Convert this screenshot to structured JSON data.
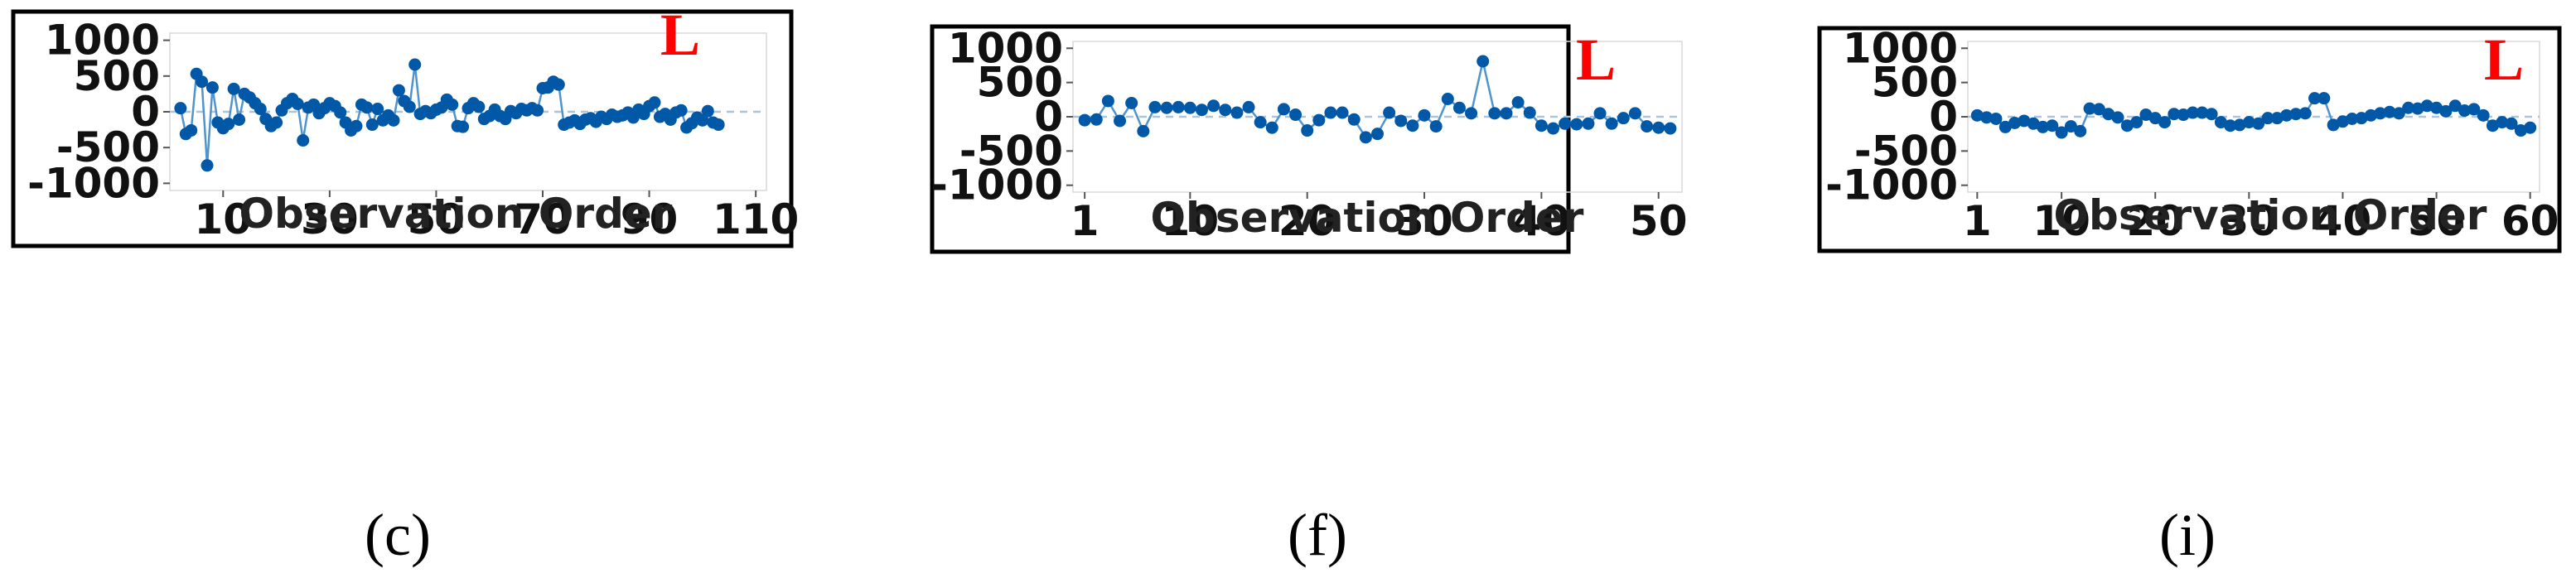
{
  "chart_data": [
    {
      "type": "line",
      "panel_label": "(c)",
      "badge": "L",
      "xlabel": "Observation Order",
      "ylabel": "",
      "xlim": [
        0,
        112
      ],
      "ylim": [
        -1100,
        1100
      ],
      "xticks": [
        10,
        30,
        50,
        70,
        90,
        110
      ],
      "yticks": [
        1000,
        500,
        0,
        -500,
        -1000
      ],
      "reference_line": 0,
      "grid": false,
      "series": [
        {
          "values": [
            [
              2,
              50
            ],
            [
              3,
              -310
            ],
            [
              4,
              -260
            ],
            [
              5,
              530
            ],
            [
              6,
              420
            ],
            [
              7,
              -750
            ],
            [
              8,
              340
            ],
            [
              9,
              -150
            ],
            [
              10,
              -230
            ],
            [
              11,
              -170
            ],
            [
              12,
              320
            ],
            [
              13,
              -110
            ],
            [
              14,
              250
            ],
            [
              15,
              200
            ],
            [
              16,
              120
            ],
            [
              17,
              40
            ],
            [
              18,
              -100
            ],
            [
              19,
              -200
            ],
            [
              20,
              -150
            ],
            [
              21,
              20
            ],
            [
              22,
              120
            ],
            [
              23,
              180
            ],
            [
              24,
              110
            ],
            [
              25,
              -400
            ],
            [
              26,
              60
            ],
            [
              27,
              100
            ],
            [
              28,
              -20
            ],
            [
              29,
              50
            ],
            [
              30,
              120
            ],
            [
              31,
              80
            ],
            [
              32,
              -10
            ],
            [
              33,
              -150
            ],
            [
              34,
              -260
            ],
            [
              35,
              -200
            ],
            [
              36,
              100
            ],
            [
              37,
              60
            ],
            [
              38,
              -180
            ],
            [
              39,
              40
            ],
            [
              40,
              -120
            ],
            [
              41,
              -50
            ],
            [
              42,
              -120
            ],
            [
              43,
              300
            ],
            [
              44,
              150
            ],
            [
              45,
              70
            ],
            [
              46,
              660
            ],
            [
              47,
              -30
            ],
            [
              48,
              10
            ],
            [
              49,
              -20
            ],
            [
              50,
              30
            ],
            [
              51,
              60
            ],
            [
              52,
              170
            ],
            [
              53,
              100
            ],
            [
              54,
              -200
            ],
            [
              55,
              -210
            ],
            [
              56,
              50
            ],
            [
              57,
              120
            ],
            [
              58,
              70
            ],
            [
              59,
              -100
            ],
            [
              60,
              -60
            ],
            [
              61,
              30
            ],
            [
              62,
              -60
            ],
            [
              63,
              -100
            ],
            [
              64,
              10
            ],
            [
              65,
              -20
            ],
            [
              66,
              40
            ],
            [
              67,
              20
            ],
            [
              68,
              50
            ],
            [
              69,
              20
            ],
            [
              70,
              330
            ],
            [
              71,
              340
            ],
            [
              72,
              420
            ],
            [
              73,
              380
            ],
            [
              74,
              -180
            ],
            [
              75,
              -150
            ],
            [
              76,
              -120
            ],
            [
              77,
              -170
            ],
            [
              78,
              -110
            ],
            [
              79,
              -90
            ],
            [
              80,
              -140
            ],
            [
              81,
              -70
            ],
            [
              82,
              -100
            ],
            [
              83,
              -40
            ],
            [
              84,
              -70
            ],
            [
              85,
              -50
            ],
            [
              86,
              -10
            ],
            [
              87,
              -80
            ],
            [
              88,
              30
            ],
            [
              89,
              -30
            ],
            [
              90,
              80
            ],
            [
              91,
              130
            ],
            [
              92,
              -70
            ],
            [
              93,
              -30
            ],
            [
              94,
              -110
            ],
            [
              95,
              -10
            ],
            [
              96,
              20
            ],
            [
              97,
              -220
            ],
            [
              98,
              -160
            ],
            [
              99,
              -80
            ],
            [
              100,
              -120
            ],
            [
              101,
              10
            ],
            [
              102,
              -150
            ],
            [
              103,
              -180
            ]
          ]
        }
      ]
    },
    {
      "type": "line",
      "panel_label": "(f)",
      "badge": "L",
      "xlabel": "Observation Order",
      "ylabel": "",
      "xlim": [
        0,
        52
      ],
      "ylim": [
        -1100,
        1100
      ],
      "xticks": [
        1,
        10,
        20,
        30,
        40,
        50
      ],
      "yticks": [
        1000,
        500,
        0,
        -500,
        -1000
      ],
      "reference_line": 0,
      "grid": false,
      "series": [
        {
          "values": [
            [
              1,
              -50
            ],
            [
              2,
              -40
            ],
            [
              3,
              230
            ],
            [
              4,
              -60
            ],
            [
              5,
              200
            ],
            [
              6,
              -210
            ],
            [
              7,
              140
            ],
            [
              8,
              130
            ],
            [
              9,
              140
            ],
            [
              10,
              130
            ],
            [
              11,
              100
            ],
            [
              12,
              160
            ],
            [
              13,
              100
            ],
            [
              14,
              60
            ],
            [
              15,
              140
            ],
            [
              16,
              -80
            ],
            [
              17,
              -160
            ],
            [
              18,
              110
            ],
            [
              19,
              30
            ],
            [
              20,
              -200
            ],
            [
              21,
              -50
            ],
            [
              22,
              60
            ],
            [
              23,
              60
            ],
            [
              24,
              -40
            ],
            [
              25,
              -300
            ],
            [
              26,
              -250
            ],
            [
              27,
              60
            ],
            [
              28,
              -60
            ],
            [
              29,
              -130
            ],
            [
              30,
              20
            ],
            [
              31,
              -140
            ],
            [
              32,
              260
            ],
            [
              33,
              130
            ],
            [
              34,
              50
            ],
            [
              35,
              810
            ],
            [
              36,
              50
            ],
            [
              37,
              50
            ],
            [
              38,
              210
            ],
            [
              39,
              60
            ],
            [
              40,
              -130
            ],
            [
              41,
              -170
            ],
            [
              42,
              -100
            ],
            [
              43,
              -110
            ],
            [
              44,
              -100
            ],
            [
              45,
              50
            ],
            [
              46,
              -100
            ],
            [
              47,
              -20
            ],
            [
              48,
              50
            ],
            [
              49,
              -140
            ],
            [
              50,
              -160
            ],
            [
              51,
              -170
            ]
          ]
        }
      ]
    },
    {
      "type": "line",
      "panel_label": "(i)",
      "badge": "L",
      "xlabel": "Observation Order",
      "ylabel": "",
      "xlim": [
        0,
        61
      ],
      "ylim": [
        -1100,
        1100
      ],
      "xticks": [
        1,
        10,
        20,
        30,
        40,
        50,
        60
      ],
      "yticks": [
        1000,
        500,
        0,
        -500,
        -1000
      ],
      "reference_line": 0,
      "grid": false,
      "series": [
        {
          "values": [
            [
              1,
              20
            ],
            [
              2,
              -10
            ],
            [
              3,
              -30
            ],
            [
              4,
              -150
            ],
            [
              5,
              -90
            ],
            [
              6,
              -60
            ],
            [
              7,
              -100
            ],
            [
              8,
              -150
            ],
            [
              9,
              -130
            ],
            [
              10,
              -230
            ],
            [
              11,
              -140
            ],
            [
              12,
              -210
            ],
            [
              13,
              120
            ],
            [
              14,
              110
            ],
            [
              15,
              40
            ],
            [
              16,
              -10
            ],
            [
              17,
              -130
            ],
            [
              18,
              -80
            ],
            [
              19,
              30
            ],
            [
              20,
              -20
            ],
            [
              21,
              -80
            ],
            [
              22,
              40
            ],
            [
              23,
              30
            ],
            [
              24,
              60
            ],
            [
              25,
              60
            ],
            [
              26,
              40
            ],
            [
              27,
              -80
            ],
            [
              28,
              -130
            ],
            [
              29,
              -120
            ],
            [
              30,
              -80
            ],
            [
              31,
              -100
            ],
            [
              32,
              -20
            ],
            [
              33,
              -20
            ],
            [
              34,
              20
            ],
            [
              35,
              40
            ],
            [
              36,
              50
            ],
            [
              37,
              270
            ],
            [
              38,
              270
            ],
            [
              39,
              -120
            ],
            [
              40,
              -70
            ],
            [
              41,
              -30
            ],
            [
              42,
              -20
            ],
            [
              43,
              20
            ],
            [
              44,
              50
            ],
            [
              45,
              70
            ],
            [
              46,
              50
            ],
            [
              47,
              130
            ],
            [
              48,
              120
            ],
            [
              49,
              160
            ],
            [
              50,
              130
            ],
            [
              51,
              80
            ],
            [
              52,
              160
            ],
            [
              53,
              90
            ],
            [
              54,
              110
            ],
            [
              55,
              20
            ],
            [
              56,
              -130
            ],
            [
              57,
              -80
            ],
            [
              58,
              -100
            ],
            [
              59,
              -200
            ],
            [
              60,
              -160
            ]
          ]
        }
      ]
    }
  ],
  "colors": {
    "marker": "#0058a6",
    "line": "#4f94cd",
    "reference_line": "#a8c4de",
    "frame": "#000000",
    "badge": "#ff0000"
  }
}
